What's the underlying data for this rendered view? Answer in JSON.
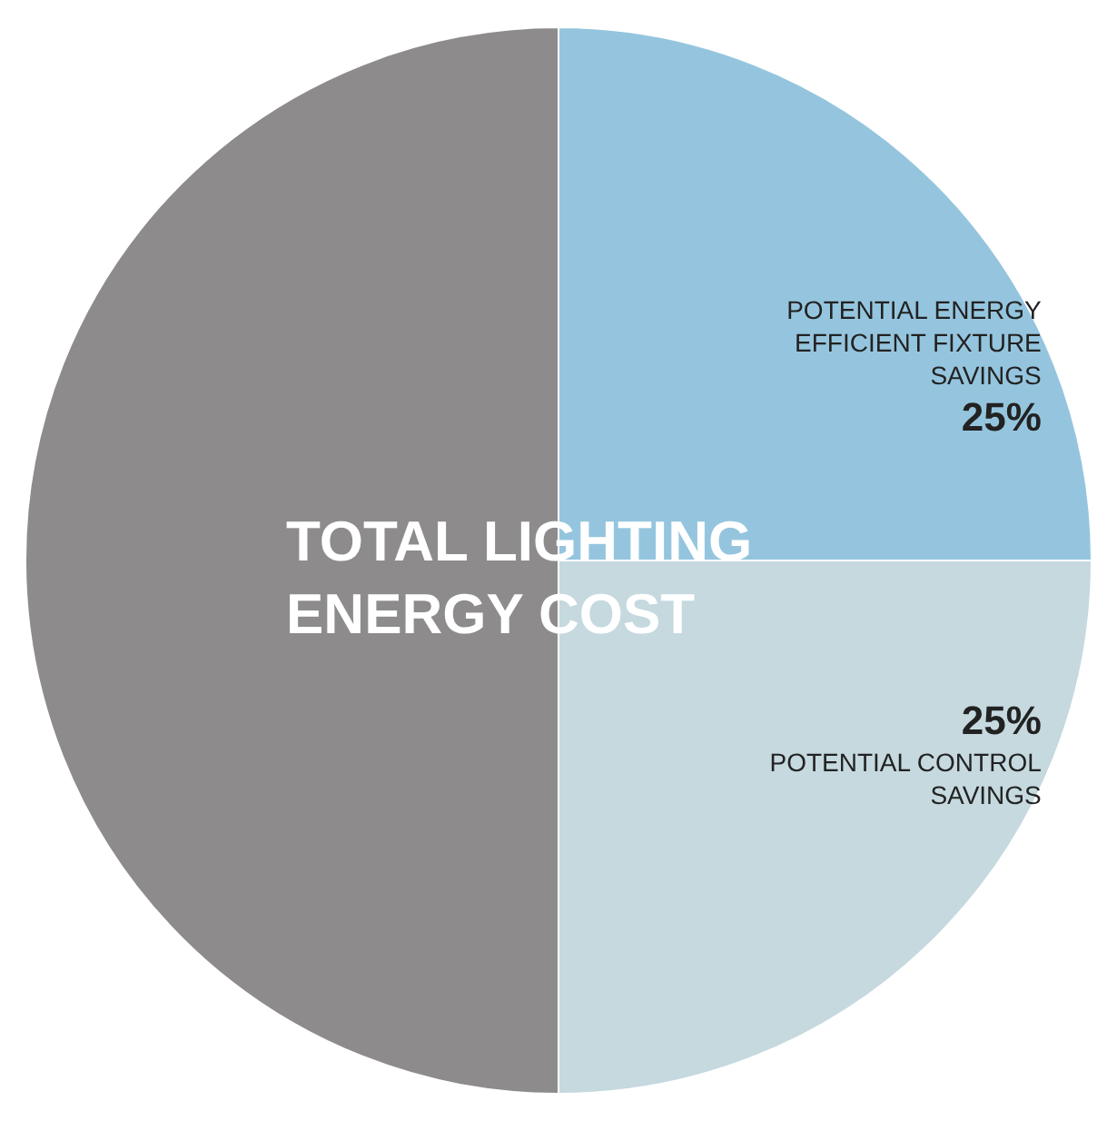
{
  "chart_data": {
    "type": "pie",
    "title": "TOTAL LIGHTING ENERGY COST",
    "categories": [
      "POTENTIAL ENERGY EFFICIENT FIXTURE SAVINGS",
      "POTENTIAL CONTROL SAVINGS",
      null
    ],
    "values": [
      25,
      25,
      50
    ],
    "value_labels": [
      "25%",
      "25%",
      null
    ],
    "colors": [
      "#95c5de",
      "#c5d9df",
      "#8e8b8c"
    ]
  }
}
